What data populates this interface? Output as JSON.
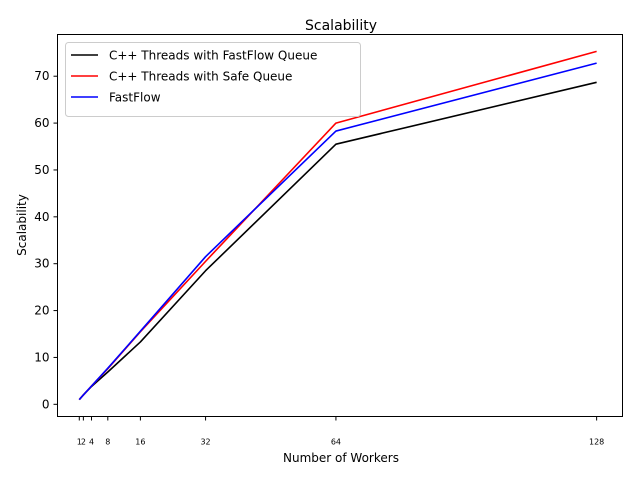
{
  "chart_data": {
    "type": "line",
    "title": "Scalability",
    "xlabel": "Number of Workers",
    "ylabel": "Scalability",
    "x": [
      1,
      2,
      4,
      8,
      16,
      32,
      64,
      128
    ],
    "xticks": [
      1,
      2,
      4,
      8,
      16,
      32,
      64,
      128
    ],
    "xtick_labels": [
      "1",
      "2",
      "4",
      "8",
      "16",
      "32",
      "64",
      "128"
    ],
    "yticks": [
      0,
      10,
      20,
      30,
      40,
      50,
      60,
      70
    ],
    "xlim": [
      -4.35,
      134.35
    ],
    "ylim": [
      -2.6,
      78.9
    ],
    "grid": false,
    "legend_position": "upper left",
    "series": [
      {
        "name": "C++ Threads with FastFlow Queue",
        "color": "#000000",
        "values": [
          1.0,
          2.0,
          3.8,
          6.9,
          13.3,
          28.5,
          55.5,
          68.7
        ]
      },
      {
        "name": "C++ Threads with Safe Queue",
        "color": "#ff0000",
        "values": [
          1.0,
          2.0,
          3.9,
          7.6,
          15.5,
          30.5,
          60.0,
          75.3
        ]
      },
      {
        "name": "FastFlow",
        "color": "#0000ff",
        "values": [
          1.0,
          2.0,
          3.9,
          7.7,
          15.6,
          31.5,
          58.3,
          72.8
        ]
      }
    ]
  }
}
